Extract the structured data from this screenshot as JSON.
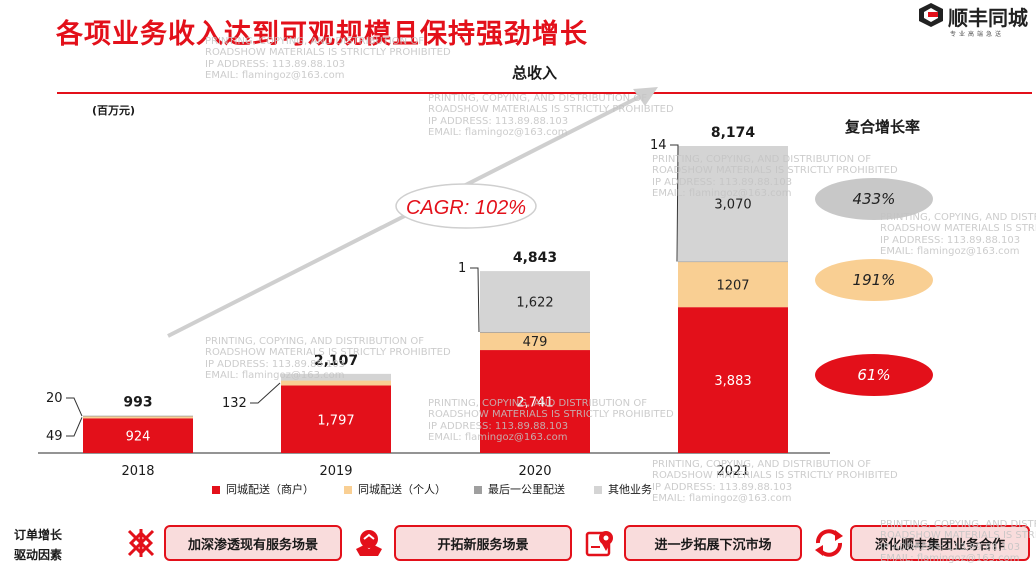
{
  "header": {
    "title": "各项业务收入达到可观规模且保持强劲增长"
  },
  "logo": {
    "text": "顺丰同城",
    "slogan": "专业高端急送"
  },
  "watermark": {
    "line1": "PRINTING, COPYING, AND DISTRIBUTION OF",
    "line2": "ROADSHOW MATERIALS IS STRICTLY PROHIBITED",
    "line3": "IP ADDRESS: 113.89.88.103",
    "line4": "EMAIL: flamingoz@163.com"
  },
  "chart_data": {
    "type": "bar",
    "title": "总收入",
    "unit_label": "(百万元)",
    "categories": [
      "2018",
      "2019",
      "2020",
      "2021"
    ],
    "series": [
      {
        "name": "同城配送（商户）",
        "color": "#e3101a",
        "values": [
          924,
          1797,
          2741,
          3883
        ]
      },
      {
        "name": "同城配送（个人）",
        "color": "#f9cf93",
        "values": [
          49,
          132,
          479,
          1207
        ]
      },
      {
        "name": "最后一公里配送",
        "color": "#9f9f9f",
        "values": [
          20,
          0,
          1,
          14
        ]
      },
      {
        "name": "其他业务",
        "color": "#d4d4d4",
        "values": [
          0,
          178,
          1622,
          3070
        ]
      }
    ],
    "totals": [
      "993",
      "2,107",
      "4,843",
      "8,174"
    ],
    "segment_labels": [
      [
        "924",
        "",
        "",
        ""
      ],
      [
        "1,797",
        "",
        "",
        "178"
      ],
      [
        "2,741",
        "479",
        "",
        "1,622"
      ],
      [
        "3,883",
        "1207",
        "",
        "3,070"
      ]
    ],
    "callouts": [
      {
        "bar": 0,
        "label": "20",
        "series": 2
      },
      {
        "bar": 0,
        "label": "49",
        "series": 1
      },
      {
        "bar": 1,
        "label": "132",
        "series": 1
      },
      {
        "bar": 2,
        "label": "1",
        "series": 2
      },
      {
        "bar": 3,
        "label": "14",
        "series": 2
      }
    ],
    "ylim": [
      0,
      8600
    ],
    "cagr_label": "CAGR: 102%",
    "cagr_title": "复合增长率",
    "cagr_values": [
      {
        "label": "433%",
        "color": "#c8c8c8",
        "text_color": "#222222"
      },
      {
        "label": "191%",
        "color": "#f9cf93",
        "text_color": "#222222"
      },
      {
        "label": "61%",
        "color": "#e3101a",
        "text_color": "#ffffff"
      }
    ]
  },
  "drivers": {
    "label_line1": "订单增长",
    "label_line2": "驱动因素",
    "items": [
      {
        "label": "加深渗透现有服务场景",
        "icon": "network-icon"
      },
      {
        "label": "开拓新服务场景",
        "icon": "handshake-icon"
      },
      {
        "label": "进一步拓展下沉市场",
        "icon": "map-pin-icon"
      },
      {
        "label": "深化顺丰集团业务合作",
        "icon": "refresh-icon"
      }
    ]
  },
  "colors": {
    "accent": "#e3101a",
    "pill_fill": "#f9dcdc"
  }
}
